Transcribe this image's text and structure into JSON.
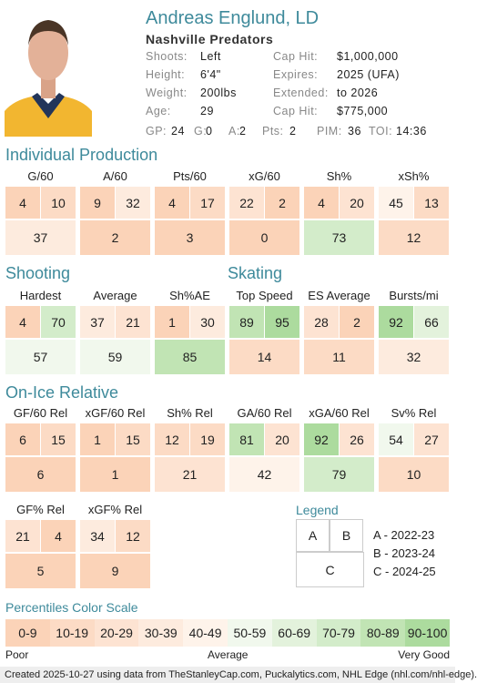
{
  "header": {
    "name": "Andreas Englund, LD",
    "team": "Nashville Predators",
    "info": [
      {
        "label": "Shoots:",
        "value": "Left"
      },
      {
        "label": "Cap Hit:",
        "value": "$1,000,000"
      },
      {
        "label": "Height:",
        "value": "6'4\""
      },
      {
        "label": "Expires:",
        "value": "2025 (UFA)"
      },
      {
        "label": "Weight:",
        "value": "200lbs"
      },
      {
        "label": "Extended:",
        "value": "to 2026"
      },
      {
        "label": "Age:",
        "value": "29"
      },
      {
        "label": "Cap Hit:",
        "value": "$775,000"
      }
    ],
    "stats": [
      {
        "label": "GP:",
        "value": "24"
      },
      {
        "label": "G:",
        "value": "0"
      },
      {
        "label": "A:",
        "value": "2"
      },
      {
        "label": "Pts:",
        "value": "2"
      },
      {
        "label": "PIM:",
        "value": "36"
      },
      {
        "label": "TOI:",
        "value": "14:36"
      }
    ]
  },
  "sections": [
    {
      "title": "Individual Production",
      "metrics": [
        {
          "label": "G/60",
          "values": [
            4,
            10,
            37
          ]
        },
        {
          "label": "A/60",
          "values": [
            9,
            32,
            2
          ]
        },
        {
          "label": "Pts/60",
          "values": [
            4,
            17,
            3
          ]
        },
        {
          "label": "xG/60",
          "values": [
            22,
            2,
            0
          ]
        },
        {
          "label": "Sh%",
          "values": [
            4,
            20,
            73
          ]
        },
        {
          "label": "xSh%",
          "values": [
            45,
            13,
            12
          ]
        }
      ]
    },
    {
      "title": "Shooting",
      "metrics": [
        {
          "label": "Hardest",
          "values": [
            4,
            70,
            57
          ]
        },
        {
          "label": "Average",
          "values": [
            37,
            21,
            59
          ]
        },
        {
          "label": "Sh%AE",
          "values": [
            1,
            30,
            85
          ]
        }
      ]
    },
    {
      "title": "Skating",
      "metrics": [
        {
          "label": "Top Speed",
          "values": [
            89,
            95,
            14
          ]
        },
        {
          "label": "ES Average",
          "values": [
            28,
            2,
            11
          ]
        },
        {
          "label": "Bursts/mi",
          "values": [
            92,
            66,
            32
          ]
        }
      ]
    },
    {
      "title": "On-Ice Relative",
      "metrics": [
        {
          "label": "GF/60 Rel",
          "values": [
            6,
            15,
            6
          ]
        },
        {
          "label": "xGF/60 Rel",
          "values": [
            1,
            15,
            1
          ]
        },
        {
          "label": "Sh% Rel",
          "values": [
            12,
            19,
            21
          ]
        },
        {
          "label": "GA/60 Rel",
          "values": [
            81,
            20,
            42
          ]
        },
        {
          "label": "xGA/60 Rel",
          "values": [
            92,
            26,
            79
          ]
        },
        {
          "label": "Sv% Rel",
          "values": [
            54,
            27,
            10
          ]
        },
        {
          "label": "GF% Rel",
          "values": [
            21,
            4,
            5
          ]
        },
        {
          "label": "xGF% Rel",
          "values": [
            34,
            12,
            9
          ]
        }
      ]
    }
  ],
  "legend": {
    "title": "Legend",
    "boxes": [
      "A",
      "B",
      "C"
    ],
    "items": [
      "A - 2022-23",
      "B - 2023-24",
      "C - 2024-25"
    ]
  },
  "color_scale": {
    "title": "Percentiles Color Scale",
    "bins": [
      {
        "label": "0-9",
        "color": "#fbd3b8"
      },
      {
        "label": "10-19",
        "color": "#fcdbc5"
      },
      {
        "label": "20-29",
        "color": "#fde3d2"
      },
      {
        "label": "30-39",
        "color": "#fdebde"
      },
      {
        "label": "40-49",
        "color": "#fef3ea"
      },
      {
        "label": "50-59",
        "color": "#f1f8ed"
      },
      {
        "label": "60-69",
        "color": "#e3f2dc"
      },
      {
        "label": "70-79",
        "color": "#d3ecca"
      },
      {
        "label": "80-89",
        "color": "#c1e4b4"
      },
      {
        "label": "90-100",
        "color": "#acdb9e"
      }
    ],
    "low": "Poor",
    "mid": "Average",
    "high": "Very Good"
  },
  "footer": "Created 2025-10-27 using data from TheStanleyCap.com, Puckalytics.com, NHL Edge (nhl.com/nhl-edge)."
}
